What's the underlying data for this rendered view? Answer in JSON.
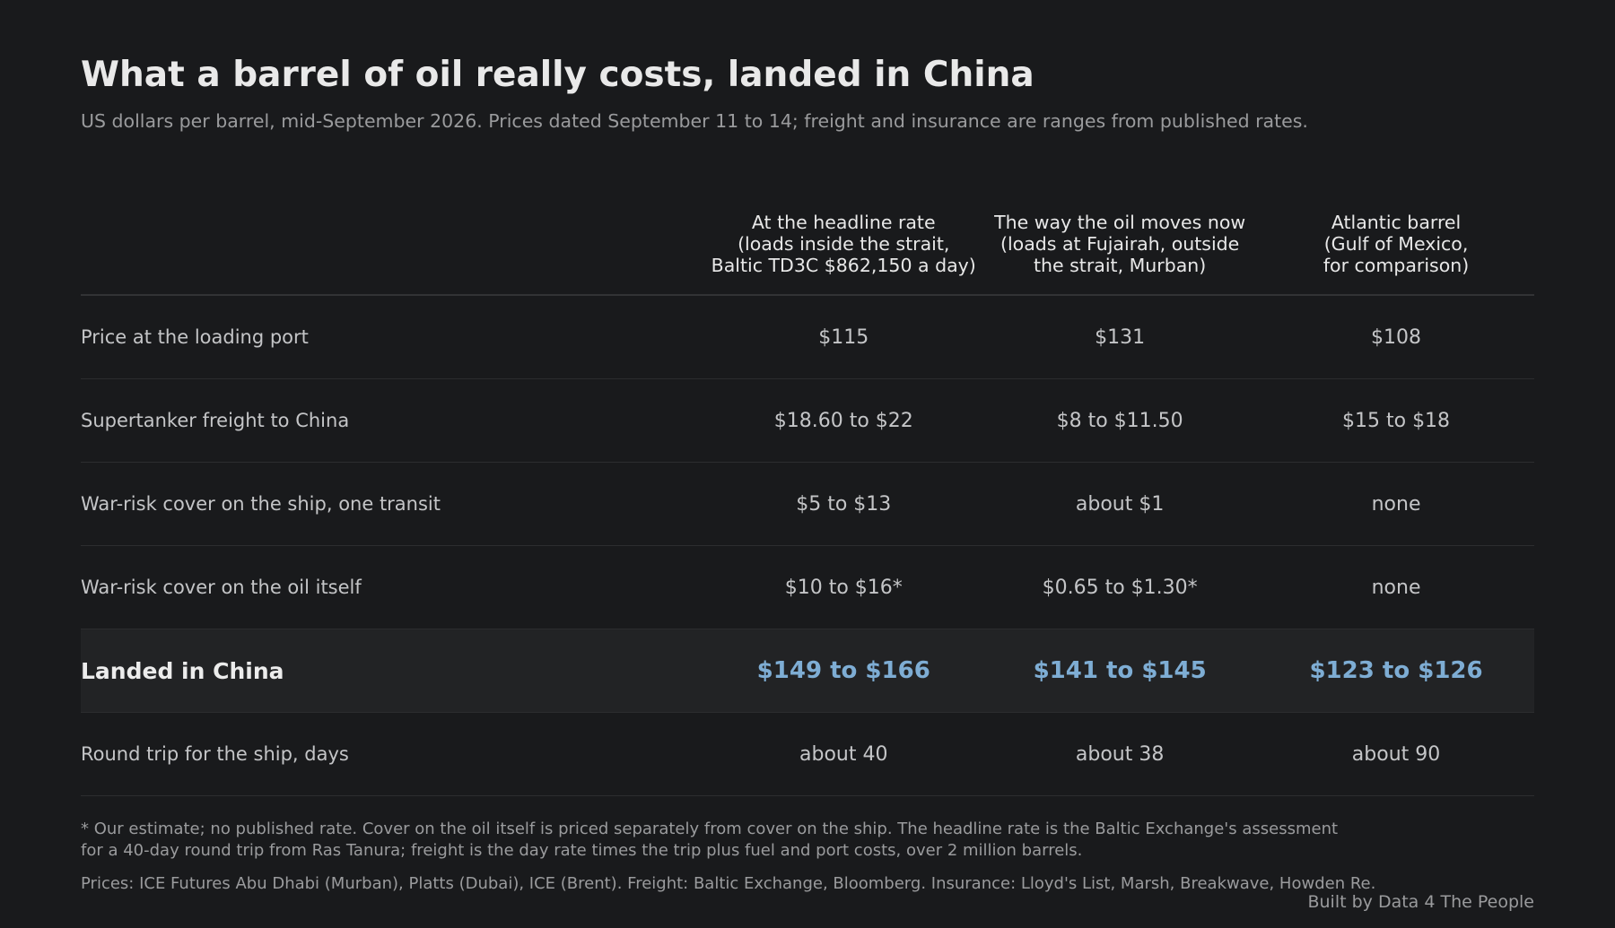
{
  "title": "What a barrel of oil really costs, landed in China",
  "subtitle": "US dollars per barrel, mid-September 2026. Prices dated September 11 to 14; freight and insurance are ranges from published rates.",
  "chart_data": {
    "type": "table",
    "columns": [
      {
        "key": "headline",
        "header_lines": [
          "At the headline rate",
          "(loads inside the strait,",
          "Baltic TD3C $862,150 a day)"
        ]
      },
      {
        "key": "now",
        "header_lines": [
          "The way the oil moves now",
          "(loads at Fujairah, outside",
          "the strait, Murban)"
        ]
      },
      {
        "key": "atlantic",
        "header_lines": [
          "Atlantic barrel",
          "(Gulf of Mexico,",
          "for comparison)"
        ]
      }
    ],
    "rows": [
      {
        "label": "Price at the loading port",
        "values": [
          "$115",
          "$131",
          "$108"
        ],
        "highlight": false
      },
      {
        "label": "Supertanker freight to China",
        "values": [
          "$18.60 to $22",
          "$8 to $11.50",
          "$15 to $18"
        ],
        "highlight": false
      },
      {
        "label": "War-risk cover on the ship, one transit",
        "values": [
          "$5 to $13",
          "about $1",
          "none"
        ],
        "highlight": false
      },
      {
        "label": "War-risk cover on the oil itself",
        "values": [
          "$10 to $16*",
          "$0.65 to $1.30*",
          "none"
        ],
        "highlight": false
      },
      {
        "label": "Landed in China",
        "values": [
          "$149 to $166",
          "$141 to $145",
          "$123 to $126"
        ],
        "highlight": true
      },
      {
        "label": "Round trip for the ship, days",
        "values": [
          "about 40",
          "about 38",
          "about 90"
        ],
        "highlight": false
      }
    ]
  },
  "notes": {
    "estimate": "* Our estimate; no published rate. Cover on the oil itself is priced separately from cover on the ship. The headline rate is the Baltic Exchange's assessment for a 40-day round trip from Ras Tanura; freight is the day rate times the trip plus fuel and port costs, over 2 million barrels.",
    "sources": "Prices: ICE Futures Abu Dhabi (Murban), Platts (Dubai), ICE (Brent). Freight: Baltic Exchange, Bloomberg. Insurance: Lloyd's List, Marsh, Breakwave, Howden Re."
  },
  "credit": "Built by Data 4 The People",
  "colors": {
    "background": "#191a1c",
    "highlight_row": "#222325",
    "highlight_value": "#7eadd4",
    "muted_text": "#9a9b9d"
  }
}
